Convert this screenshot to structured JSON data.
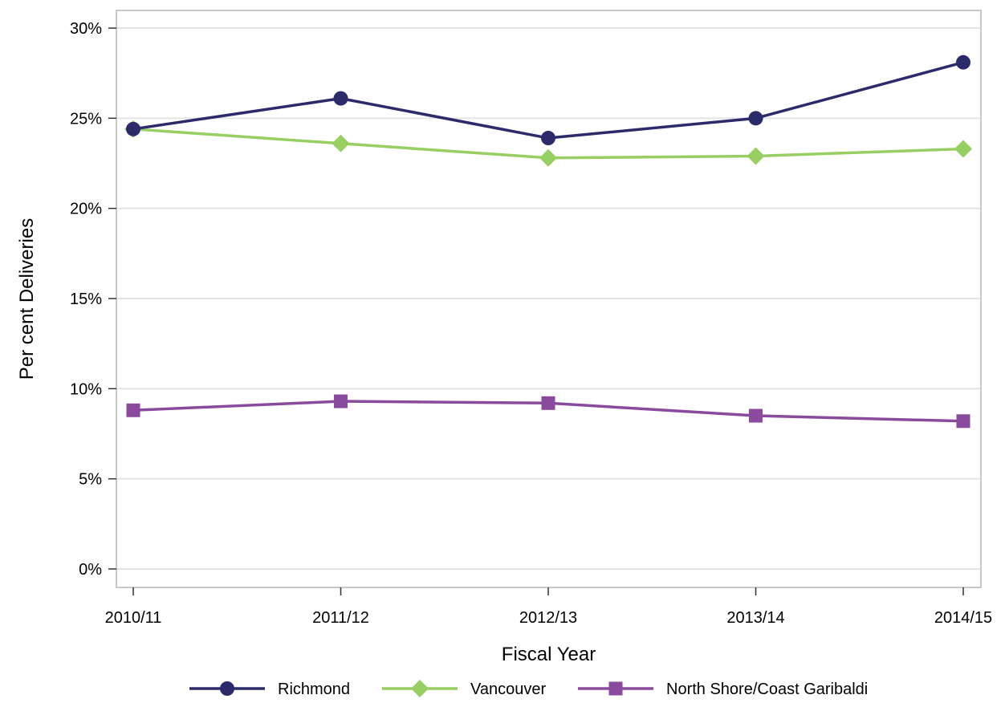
{
  "chart_data": {
    "type": "line",
    "xlabel": "Fiscal Year",
    "ylabel": "Per cent Deliveries",
    "categories": [
      "2010/11",
      "2011/12",
      "2012/13",
      "2013/14",
      "2014/15"
    ],
    "ylim": [
      0,
      30
    ],
    "yticks": [
      0,
      5,
      10,
      15,
      20,
      25,
      30
    ],
    "ytick_labels": [
      "0%",
      "5%",
      "10%",
      "15%",
      "20%",
      "25%",
      "30%"
    ],
    "grid": "horizontal",
    "legend_position": "bottom",
    "series": [
      {
        "name": "Richmond",
        "values": [
          24.4,
          26.1,
          23.9,
          25.0,
          28.1
        ],
        "color": "#2b2b6b",
        "marker": "circle"
      },
      {
        "name": "Vancouver",
        "values": [
          24.4,
          23.6,
          22.8,
          22.9,
          23.3
        ],
        "color": "#97cf63",
        "marker": "diamond"
      },
      {
        "name": "North Shore/Coast Garibaldi",
        "values": [
          8.8,
          9.3,
          9.2,
          8.5,
          8.2
        ],
        "color": "#8a4a9e",
        "marker": "square"
      }
    ],
    "colors": {
      "grid": "#e4e4e4",
      "frame": "#c8c8c8"
    }
  }
}
